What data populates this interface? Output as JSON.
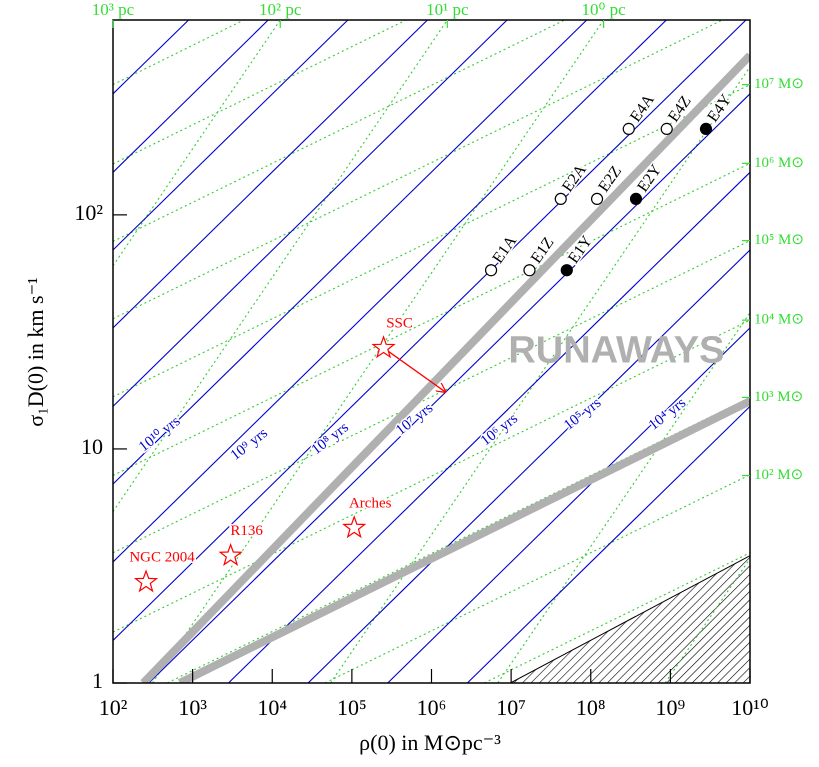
{
  "chart_data": {
    "type": "scatter",
    "xlabel": "ρ(0) in M⊙pc⁻³",
    "ylabel": "σ₁D(0) in km s⁻¹",
    "xscale": "log",
    "yscale": "log",
    "xlim": [
      100,
      10000000000.0
    ],
    "ylim": [
      1,
      680
    ],
    "xticks": [
      {
        "value": 100,
        "label": "10²"
      },
      {
        "value": 1000,
        "label": "10³"
      },
      {
        "value": 10000,
        "label": "10⁴"
      },
      {
        "value": 100000,
        "label": "10⁵"
      },
      {
        "value": 1000000,
        "label": "10⁶"
      },
      {
        "value": 10000000,
        "label": "10⁷"
      },
      {
        "value": 100000000,
        "label": "10⁸"
      },
      {
        "value": 1000000000,
        "label": "10⁹"
      },
      {
        "value": 10000000000,
        "label": "10¹⁰"
      }
    ],
    "yticks": [
      1,
      10,
      {
        "value": 100,
        "label": "10²"
      }
    ],
    "top_ticks": {
      "color": "#33dd33",
      "ticks": [
        {
          "value": 100,
          "label": "10³ pc"
        },
        {
          "value": 12600,
          "label": "10² pc"
        },
        {
          "value": 1580000,
          "label": "10¹ pc"
        },
        {
          "value": 145000000,
          "label": "10⁰ pc"
        }
      ]
    },
    "right_ticks": {
      "color": "#33dd33",
      "ticks": [
        {
          "value": 360,
          "label": "10⁷ M⊙"
        },
        {
          "value": 166,
          "label": "10⁶ M⊙"
        },
        {
          "value": 77.6,
          "label": "10⁵ M⊙"
        },
        {
          "value": 35.5,
          "label": "10⁴ M⊙"
        },
        {
          "value": 16.6,
          "label": "10³ M⊙"
        },
        {
          "value": 7.7,
          "label": "10² M⊙"
        }
      ]
    },
    "relaxation_lines": {
      "color": "#0000cc",
      "lines": [
        {
          "x": [
            2820000,
            10000000000.0
          ],
          "y": [
            1,
            15.2
          ]
        },
        {
          "x": [
            282000,
            10000000000.0
          ],
          "y": [
            1,
            32.9
          ]
        },
        {
          "x": [
            28200,
            10000000000.0
          ],
          "y": [
            1,
            70.8
          ]
        },
        {
          "x": [
            2820,
            10000000000.0
          ],
          "y": [
            1,
            152
          ]
        },
        {
          "x": [
            282,
            10000000000.0
          ],
          "y": [
            1,
            329
          ]
        },
        {
          "x": [
            100,
            8900000000.0
          ],
          "y": [
            1.52,
            680
          ]
        },
        {
          "x": [
            100,
            890000000.0
          ],
          "y": [
            3.29,
            680
          ]
        },
        {
          "x": [
            100,
            89000000.0
          ],
          "y": [
            7.08,
            680
          ]
        },
        {
          "x": [
            100,
            8900000.0
          ],
          "y": [
            15.2,
            680
          ]
        },
        {
          "x": [
            100,
            890000
          ],
          "y": [
            32.9,
            680
          ]
        },
        {
          "x": [
            100,
            89000
          ],
          "y": [
            70.8,
            680
          ]
        },
        {
          "x": [
            100,
            8900
          ],
          "y": [
            152,
            680
          ]
        },
        {
          "x": [
            100,
            890
          ],
          "y": [
            329,
            680
          ]
        }
      ],
      "labels": [
        {
          "text": "10¹⁰ yrs",
          "x": 390,
          "y": 11.5
        },
        {
          "text": "10⁹ yrs",
          "x": 5200,
          "y": 10.4
        },
        {
          "text": "10⁸ yrs",
          "x": 54000,
          "y": 11
        },
        {
          "text": "10⁷ yrs",
          "x": 620000,
          "y": 13.3
        },
        {
          "text": "10⁶ yrs",
          "x": 7200000,
          "y": 12
        },
        {
          "text": "10⁵ yrs",
          "x": 80000000,
          "y": 14
        },
        {
          "text": "10⁴ yrs",
          "x": 930000000,
          "y": 14
        }
      ]
    },
    "mass_lines": {
      "color": "#33cc33",
      "lines": [
        {
          "x": [
            100,
            10000000000.0
          ],
          "y": [
            16.7,
            360
          ]
        },
        {
          "x": [
            100,
            10000000000.0
          ],
          "y": [
            7.7,
            166
          ]
        },
        {
          "x": [
            100,
            10000000000.0
          ],
          "y": [
            3.6,
            77.6
          ]
        },
        {
          "x": [
            100,
            10000000000.0
          ],
          "y": [
            1.65,
            35.5
          ]
        },
        {
          "x": [
            480,
            10000000000.0
          ],
          "y": [
            1,
            16.6
          ]
        },
        {
          "x": [
            46000,
            10000000000.0
          ],
          "y": [
            1,
            7.76
          ]
        },
        {
          "x": [
            4600000,
            10000000000.0
          ],
          "y": [
            1,
            3.6
          ]
        },
        {
          "x": [
            100,
            4500000000.0
          ],
          "y": [
            36,
            680
          ]
        },
        {
          "x": [
            100,
            47000000
          ],
          "y": [
            77,
            680
          ]
        },
        {
          "x": [
            100,
            480000
          ],
          "y": [
            165,
            680
          ]
        },
        {
          "x": [
            100,
            4400
          ],
          "y": [
            360,
            680
          ]
        }
      ]
    },
    "radius_lines": {
      "color": "#33cc33",
      "lines": [
        {
          "x": [
            100,
            12600
          ],
          "y": [
            60.6,
            680
          ]
        },
        {
          "x": [
            100,
            1580000
          ],
          "y": [
            5.4,
            680
          ]
        },
        {
          "x": [
            313,
            145000000
          ],
          "y": [
            1,
            680
          ]
        },
        {
          "x": [
            54000,
            10000000000.0
          ],
          "y": [
            1,
            429
          ]
        },
        {
          "x": [
            6800000,
            10000000000.0
          ],
          "y": [
            1,
            38.2
          ]
        },
        {
          "x": [
            860000000,
            10000000000.0
          ],
          "y": [
            1,
            3.4
          ]
        }
      ]
    },
    "thick_lines": {
      "color": "#b0b0b0",
      "lines": [
        {
          "x": [
            240,
            10000000000.0
          ],
          "y": [
            1,
            480
          ]
        },
        {
          "x": [
            690,
            10000000000.0
          ],
          "y": [
            1,
            16
          ]
        }
      ]
    },
    "region": {
      "x": [
        9800000,
        10000000000.0,
        10000000000.0
      ],
      "y": [
        1,
        3.5,
        1
      ]
    },
    "points": {
      "color": "#000000",
      "labels": [
        "E1A",
        "E1Z",
        "E1Y",
        "E2A",
        "E2Z",
        "E2Y",
        "E4A",
        "E4Z",
        "E4Y"
      ],
      "x": [
        5600000,
        17000000,
        50000000,
        42000000,
        120000000,
        370000000,
        300000000,
        900000000,
        2800000000
      ],
      "y": [
        58,
        58,
        58,
        117,
        117,
        117,
        233,
        233,
        233
      ],
      "filled": [
        false,
        false,
        true,
        false,
        false,
        true,
        false,
        false,
        true
      ]
    },
    "clusters": {
      "color": "#ff0000",
      "labels": [
        "NGC 2004",
        "R136",
        "Arches",
        "SSC"
      ],
      "x": [
        260,
        3000,
        107000,
        250000
      ],
      "y": [
        2.7,
        3.5,
        4.6,
        27
      ],
      "arrow": {
        "x": [
          250000,
          1500000
        ],
        "y": [
          27,
          17.5
        ]
      }
    },
    "annotation": {
      "text": "RUNAWAYS",
      "x": 210000000,
      "y": 25.8,
      "color": "#b0b0b0"
    }
  }
}
